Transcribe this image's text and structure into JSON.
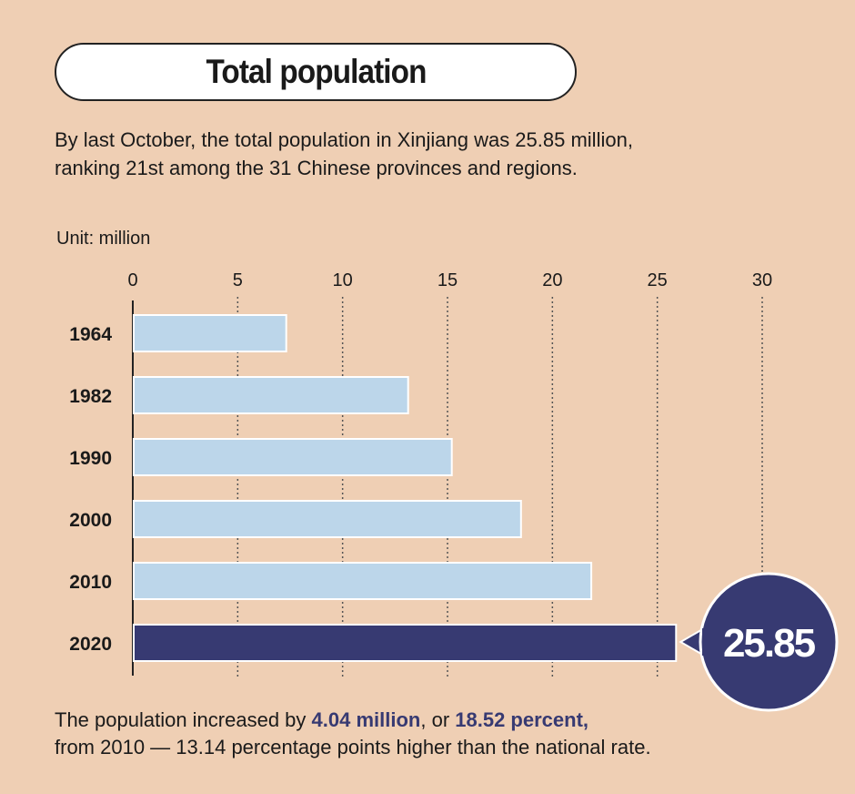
{
  "title": "Total population",
  "subtitle_lines": [
    "By last October, the total population in Xinjiang was 25.85 million,",
    "ranking 21st among the 31 Chinese provinces and regions."
  ],
  "footer": {
    "part1": "The population increased by ",
    "hl1": "4.04 million",
    "part2": ",  or ",
    "hl2": "18.52 percent,",
    "line2": "from 2010 — 13.14 percentage points higher than the national rate."
  },
  "colors": {
    "background": "#efcfb4",
    "bar": "#bcd6ea",
    "highlight": "#373a72"
  },
  "chart_data": {
    "type": "bar",
    "orientation": "horizontal",
    "unit_label": "Unit: million",
    "categories": [
      "1964",
      "1982",
      "1990",
      "2000",
      "2010",
      "2020"
    ],
    "values": [
      7.27,
      13.08,
      15.16,
      18.46,
      21.81,
      25.85
    ],
    "highlight_index": 5,
    "callout": "25.85",
    "xlim": [
      0,
      30
    ],
    "xticks": [
      "0",
      "5",
      "10",
      "15",
      "20",
      "25",
      "30"
    ],
    "grid": "dotted vertical"
  }
}
